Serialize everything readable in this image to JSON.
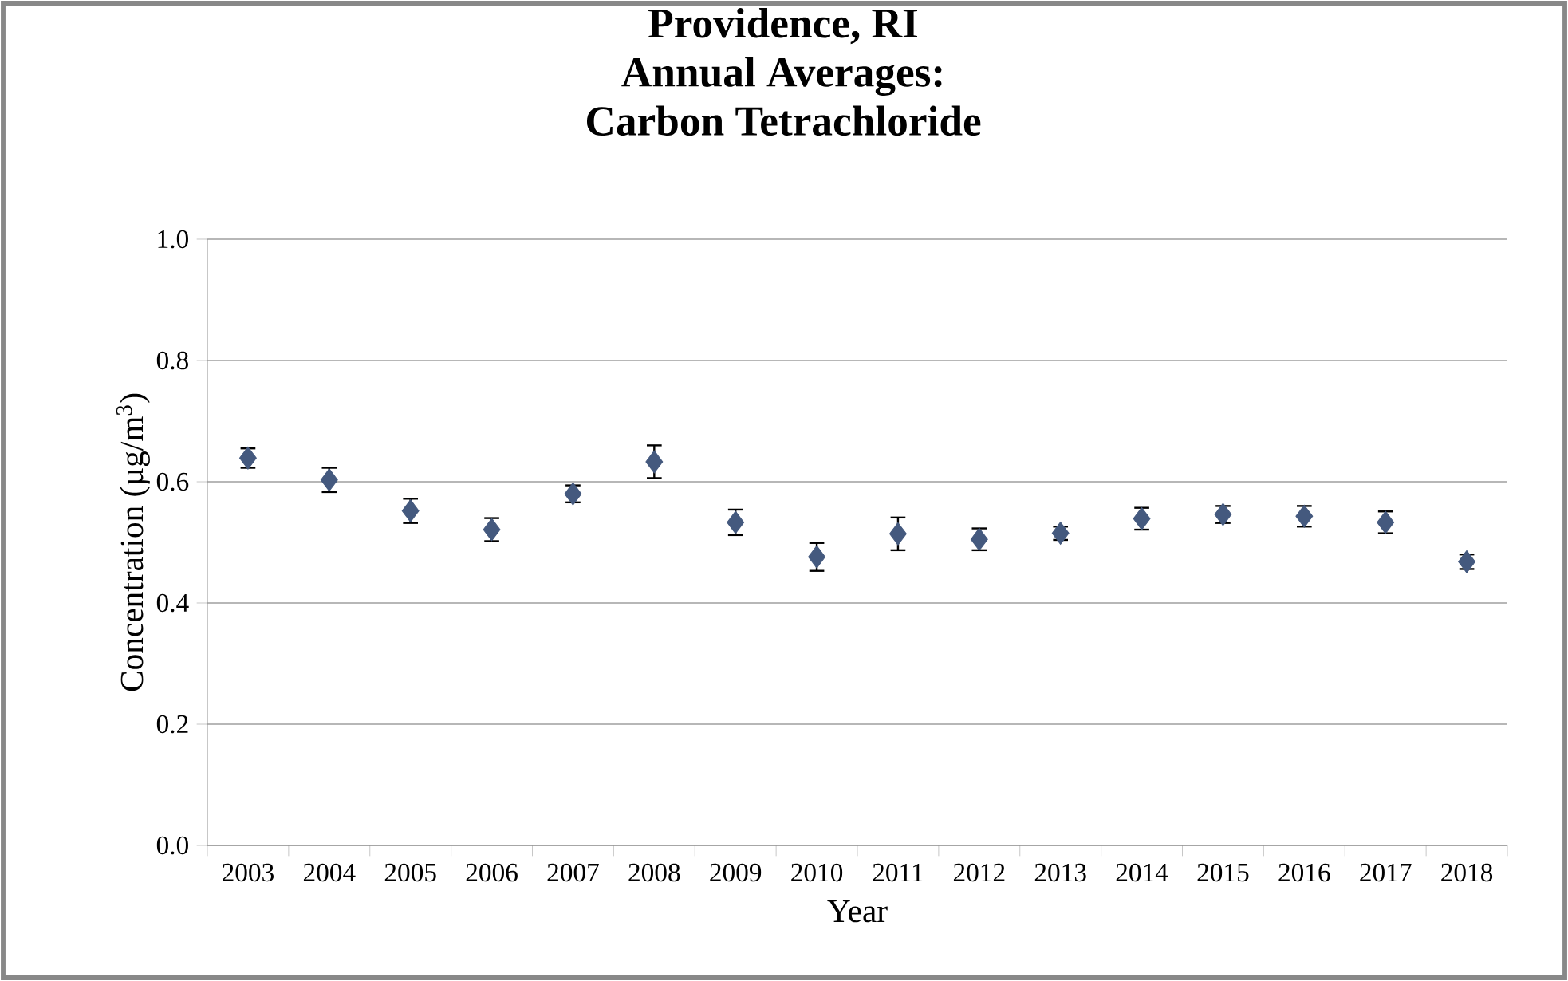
{
  "chart_data": {
    "type": "scatter",
    "title": "Providence, RI\nAnnual Averages:\nCarbon Tetrachloride",
    "xlabel": "Year",
    "ylabel": "Concentration (µg/m$^{3}$)",
    "categories": [
      "2003",
      "2004",
      "2005",
      "2006",
      "2007",
      "2008",
      "2009",
      "2010",
      "2011",
      "2012",
      "2013",
      "2014",
      "2015",
      "2016",
      "2017",
      "2018"
    ],
    "values": [
      0.639,
      0.603,
      0.552,
      0.521,
      0.58,
      0.633,
      0.533,
      0.476,
      0.514,
      0.505,
      0.515,
      0.539,
      0.546,
      0.543,
      0.533,
      0.468
    ],
    "errors": [
      0.016,
      0.02,
      0.02,
      0.019,
      0.014,
      0.027,
      0.021,
      0.023,
      0.027,
      0.018,
      0.011,
      0.018,
      0.014,
      0.017,
      0.018,
      0.012
    ],
    "color": "#44597e",
    "marker": "diamond",
    "grid": "y",
    "ylim": [
      0,
      1
    ],
    "yticks": [
      {
        "value": 0,
        "label": "0.0"
      },
      0.2,
      0.4,
      0.6,
      0.8,
      {
        "value": 1,
        "label": "1.0"
      }
    ]
  }
}
